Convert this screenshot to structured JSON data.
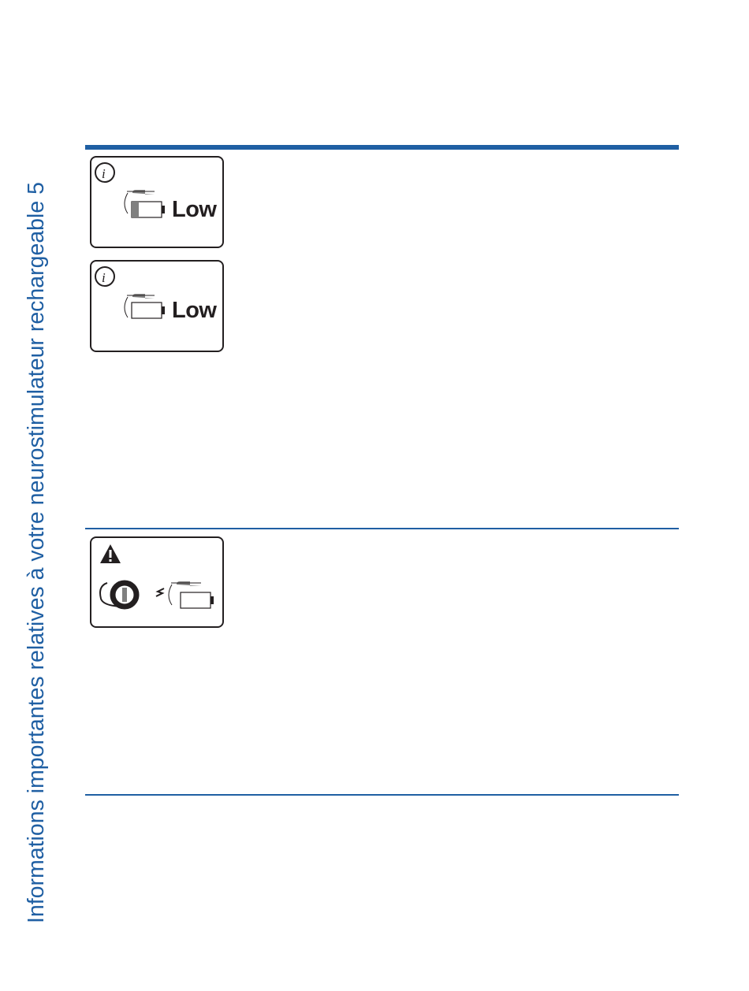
{
  "side_title": "Informations importantes relatives à votre neurostimulateur rechargeable 5",
  "entries": [
    {
      "icon": "info-battery-low-partial-icon",
      "indicator_text": "Low"
    },
    {
      "icon": "info-battery-low-empty-icon",
      "indicator_text": "Low"
    },
    {
      "icon": "warning-charger-communication-icon"
    }
  ],
  "colors": {
    "accent": "#1f5fa3",
    "ink": "#231f20",
    "battery_fill": "#808080"
  }
}
